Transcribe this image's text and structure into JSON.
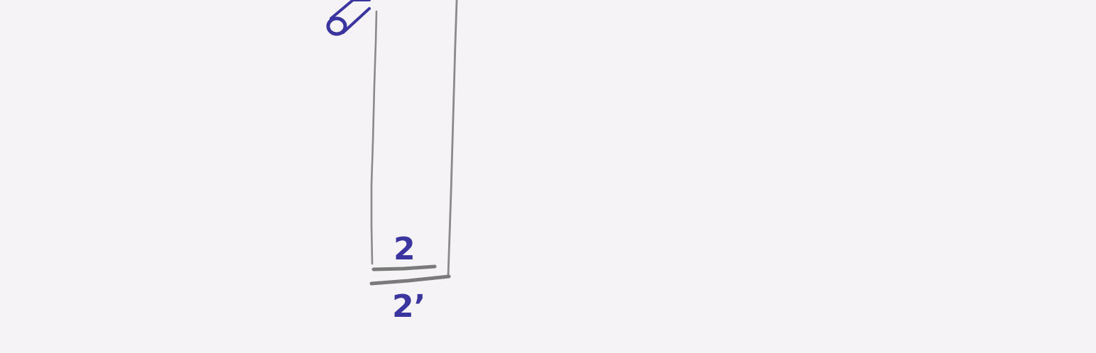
{
  "diagram": {
    "labels": {
      "upper": "2",
      "lower": "2’"
    },
    "colors": {
      "paper": "#f5f3f6",
      "pencil": "#8a8a8a",
      "pencil_dark": "#7a7a7a",
      "ink": "#3b35a0"
    }
  }
}
